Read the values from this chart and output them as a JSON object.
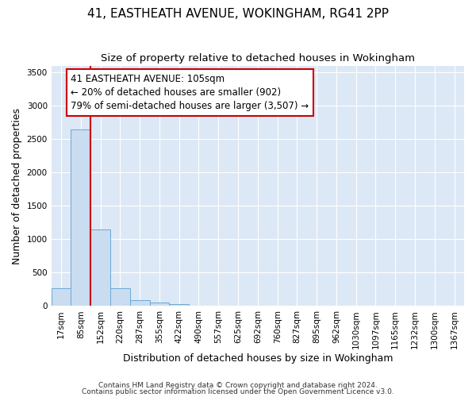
{
  "title": "41, EASTHEATH AVENUE, WOKINGHAM, RG41 2PP",
  "subtitle": "Size of property relative to detached houses in Wokingham",
  "xlabel": "Distribution of detached houses by size in Wokingham",
  "ylabel": "Number of detached properties",
  "footnote1": "Contains HM Land Registry data © Crown copyright and database right 2024.",
  "footnote2": "Contains public sector information licensed under the Open Government Licence v3.0.",
  "bar_color": "#c9dcf0",
  "bar_edge_color": "#6aaad4",
  "vline_color": "#cc0000",
  "vline_x": 1.5,
  "annotation_line1": "41 EASTHEATH AVENUE: 105sqm",
  "annotation_line2": "← 20% of detached houses are smaller (902)",
  "annotation_line3": "79% of semi-detached houses are larger (3,507) →",
  "annotation_box_edge": "#cc0000",
  "annotation_fontsize": 8.5,
  "categories": [
    "17sqm",
    "85sqm",
    "152sqm",
    "220sqm",
    "287sqm",
    "355sqm",
    "422sqm",
    "490sqm",
    "557sqm",
    "625sqm",
    "692sqm",
    "760sqm",
    "827sqm",
    "895sqm",
    "962sqm",
    "1030sqm",
    "1097sqm",
    "1165sqm",
    "1232sqm",
    "1300sqm",
    "1367sqm"
  ],
  "values": [
    270,
    2650,
    1150,
    270,
    90,
    50,
    30,
    5,
    2,
    1,
    0,
    0,
    0,
    0,
    0,
    0,
    0,
    0,
    0,
    0,
    0
  ],
  "ylim": [
    0,
    3600
  ],
  "yticks": [
    0,
    500,
    1000,
    1500,
    2000,
    2500,
    3000,
    3500
  ],
  "plot_bg_color": "#dce8f5",
  "title_fontsize": 11,
  "subtitle_fontsize": 9.5,
  "axis_label_fontsize": 9,
  "tick_fontsize": 7.5,
  "footnote_fontsize": 6.5
}
